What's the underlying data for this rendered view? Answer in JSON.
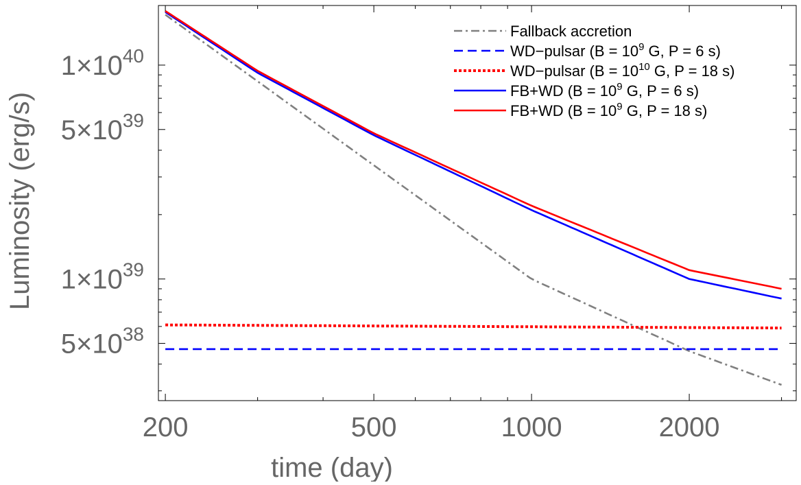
{
  "chart_data": {
    "type": "line",
    "title": "",
    "xlabel": "time (day)",
    "ylabel": "Luminosity (erg/s)",
    "x_scale": "log",
    "y_scale": "log",
    "xlim": [
      194,
      3200
    ],
    "ylim": [
      2.7e+38,
      1.9e+40
    ],
    "x_ticks": [
      {
        "value": 200,
        "label": "200"
      },
      {
        "value": 500,
        "label": "500"
      },
      {
        "value": 1000,
        "label": "1000"
      },
      {
        "value": 2000,
        "label": "2000"
      }
    ],
    "y_ticks": [
      {
        "value": 5e+38,
        "mantissa": "5",
        "exp": "38"
      },
      {
        "value": 1e+39,
        "mantissa": "1",
        "exp": "39"
      },
      {
        "value": 5e+39,
        "mantissa": "5",
        "exp": "39"
      },
      {
        "value": 1e+40,
        "mantissa": "1",
        "exp": "40"
      }
    ],
    "legend_position": "top-right",
    "series": [
      {
        "name": "Fallback accretion",
        "legend_parts": [
          "Fallback accretion",
          "",
          ""
        ],
        "color": "#808080",
        "dash": "dashdot",
        "x": [
          200,
          300,
          500,
          1000,
          2000,
          3000
        ],
        "y": [
          1.72e+40,
          8.4e+39,
          3.4e+39,
          1e+39,
          4.6e+38,
          3.2e+38
        ]
      },
      {
        "name": "WD-pulsar (B = 10^9 G, P = 6 s)",
        "legend_parts": [
          "WD−pulsar (B = 10",
          "9",
          " G, P = 6 s)"
        ],
        "color": "#0000ff",
        "dash": "dashed",
        "x": [
          200,
          3000
        ],
        "y": [
          4.7e+38,
          4.7e+38
        ]
      },
      {
        "name": "WD-pulsar (B = 10^10 G, P = 18 s)",
        "legend_parts": [
          " WD−pulsar (B = 10",
          "10",
          " G, P = 18 s)"
        ],
        "color": "#ff0000",
        "dash": "dotted",
        "x": [
          200,
          3000
        ],
        "y": [
          6.1e+38,
          5.9e+38
        ]
      },
      {
        "name": "FB+WD (B = 10^9 G, P = 6 s)",
        "legend_parts": [
          "FB+WD (B = 10",
          "9",
          " G, P = 6 s)"
        ],
        "color": "#0000ff",
        "dash": "solid",
        "x": [
          200,
          300,
          500,
          1000,
          2000,
          3000
        ],
        "y": [
          1.77e+40,
          9.2e+39,
          4.7e+39,
          2.1e+39,
          1e+39,
          8.1e+38
        ]
      },
      {
        "name": "FB+WD (B = 10^9 G, P = 18 s)",
        "legend_parts": [
          "FB+WD (B = 10",
          "9",
          " G, P = 18 s)"
        ],
        "color": "#ff0000",
        "dash": "solid",
        "x": [
          200,
          300,
          500,
          1000,
          2000,
          3000
        ],
        "y": [
          1.79e+40,
          9.4e+39,
          4.8e+39,
          2.2e+39,
          1.1e+39,
          9e+38
        ]
      }
    ]
  }
}
